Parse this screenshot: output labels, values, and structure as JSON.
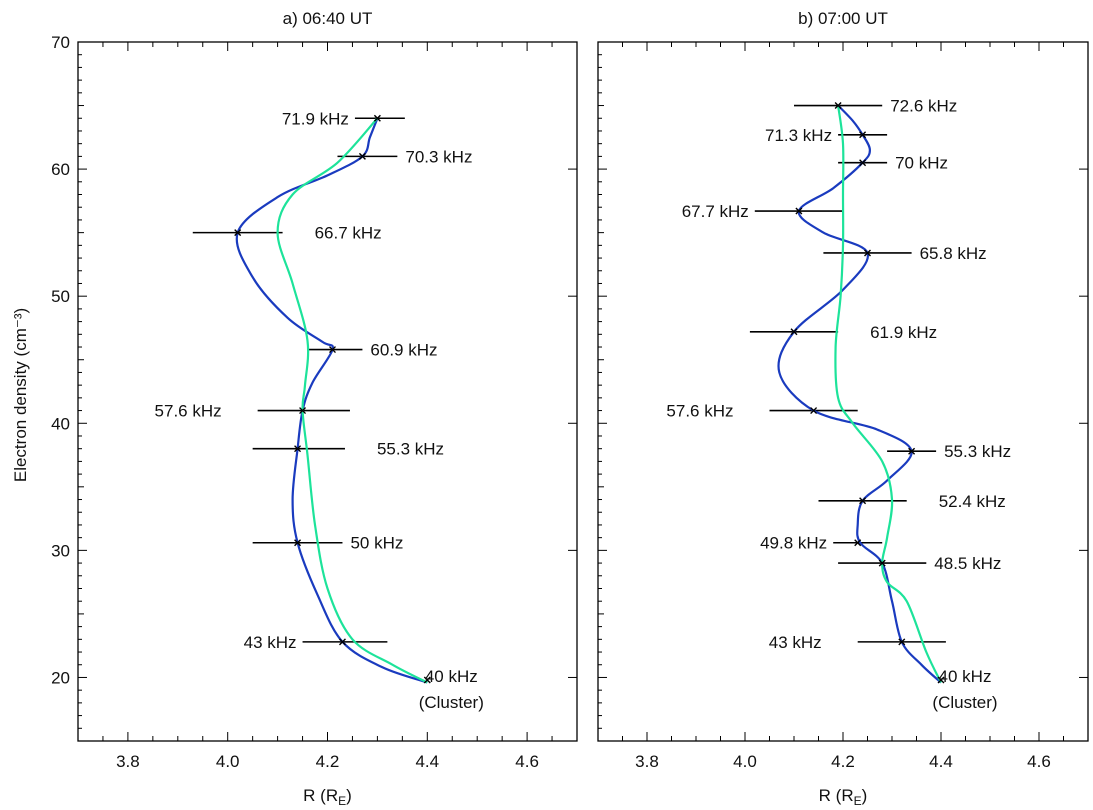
{
  "figure": {
    "ylabel": "Electron density (cm⁻³)",
    "xlabel": "R (R",
    "xlabel_sub": "E",
    "xlabel_close": ")"
  },
  "chart_data": [
    {
      "type": "line",
      "title": "a) 06:40 UT",
      "xlim": [
        3.7,
        4.7
      ],
      "ylim": [
        15,
        70
      ],
      "xticks": [
        "3.8",
        "4.0",
        "4.2",
        "4.4",
        "4.6"
      ],
      "yticks": [
        "20",
        "30",
        "40",
        "50",
        "60",
        "70"
      ],
      "grid": false,
      "measurements": [
        {
          "x": 4.3,
          "y": 64.0,
          "xerr": [
            4.255,
            4.355
          ],
          "label": "71.9 kHz",
          "label_side": "left"
        },
        {
          "x": 4.27,
          "y": 61.0,
          "xerr": [
            4.22,
            4.34
          ],
          "label": "70.3 kHz",
          "label_side": "right"
        },
        {
          "x": 4.02,
          "y": 55.0,
          "xerr": [
            3.93,
            4.11
          ],
          "label": "66.7 kHz",
          "label_side": "right_far"
        },
        {
          "x": 4.21,
          "y": 45.8,
          "xerr": [
            4.16,
            4.27
          ],
          "label": "60.9 kHz",
          "label_side": "right"
        },
        {
          "x": 4.15,
          "y": 41.0,
          "xerr": [
            4.06,
            4.245
          ],
          "label": "57.6 kHz",
          "label_side": "left_far"
        },
        {
          "x": 4.14,
          "y": 38.0,
          "xerr": [
            4.05,
            4.235
          ],
          "label": "55.3 kHz",
          "label_side": "right_far"
        },
        {
          "x": 4.14,
          "y": 30.6,
          "xerr": [
            4.05,
            4.23
          ],
          "label": "50 kHz",
          "label_side": "right"
        },
        {
          "x": 4.23,
          "y": 22.8,
          "xerr": [
            4.15,
            4.32
          ],
          "label": "43 kHz",
          "label_side": "left"
        },
        {
          "x": 4.4,
          "y": 19.8,
          "xerr": [
            4.4,
            4.4
          ],
          "label": "40 kHz",
          "label2": "(Cluster)",
          "label_side": "cluster"
        }
      ],
      "series": [
        {
          "color": "#1a3bbf",
          "x": [
            4.3,
            4.285,
            4.27,
            4.2,
            4.1,
            4.02,
            4.05,
            4.12,
            4.19,
            4.21,
            4.17,
            4.15,
            4.14,
            4.13,
            4.14,
            4.18,
            4.23,
            4.31,
            4.4
          ],
          "y": [
            64.0,
            62.5,
            61.0,
            59.5,
            57.8,
            55.0,
            51.5,
            48.3,
            46.4,
            45.8,
            43.2,
            41.0,
            38.0,
            34.0,
            30.6,
            26.5,
            22.8,
            20.8,
            19.6
          ]
        },
        {
          "color": "#1de39a",
          "x": [
            4.3,
            4.22,
            4.13,
            4.1,
            4.13,
            4.16,
            4.155,
            4.15,
            4.16,
            4.175,
            4.2,
            4.25,
            4.33,
            4.4
          ],
          "y": [
            64.0,
            60.5,
            58.0,
            55.0,
            51.0,
            46.5,
            43.0,
            41.0,
            37.5,
            32.0,
            27.0,
            23.0,
            21.0,
            19.6
          ]
        }
      ]
    },
    {
      "type": "line",
      "title": "b) 07:00 UT",
      "xlim": [
        3.7,
        4.7
      ],
      "ylim": [
        15,
        70
      ],
      "xticks": [
        "3.8",
        "4.0",
        "4.2",
        "4.4",
        "4.6"
      ],
      "yticks": [
        "20",
        "30",
        "40",
        "50",
        "60",
        "70"
      ],
      "grid": false,
      "measurements": [
        {
          "x": 4.19,
          "y": 65.0,
          "xerr": [
            4.1,
            4.28
          ],
          "label": "72.6 kHz",
          "label_side": "right"
        },
        {
          "x": 4.24,
          "y": 62.7,
          "xerr": [
            4.19,
            4.29
          ],
          "label": "71.3 kHz",
          "label_side": "left"
        },
        {
          "x": 4.24,
          "y": 60.5,
          "xerr": [
            4.19,
            4.29
          ],
          "label": "70 kHz",
          "label_side": "right"
        },
        {
          "x": 4.11,
          "y": 56.7,
          "xerr": [
            4.02,
            4.2
          ],
          "label": "67.7 kHz",
          "label_side": "left"
        },
        {
          "x": 4.25,
          "y": 53.4,
          "xerr": [
            4.16,
            4.34
          ],
          "label": "65.8 kHz",
          "label_side": "right"
        },
        {
          "x": 4.1,
          "y": 47.2,
          "xerr": [
            4.01,
            4.19
          ],
          "label": "61.9 kHz",
          "label_side": "right_far"
        },
        {
          "x": 4.14,
          "y": 41.0,
          "xerr": [
            4.05,
            4.23
          ],
          "label": "57.6 kHz",
          "label_side": "left_far"
        },
        {
          "x": 4.34,
          "y": 37.8,
          "xerr": [
            4.29,
            4.39
          ],
          "label": "55.3 kHz",
          "label_side": "right"
        },
        {
          "x": 4.24,
          "y": 33.9,
          "xerr": [
            4.15,
            4.33
          ],
          "label": "52.4 kHz",
          "label_side": "right_far"
        },
        {
          "x": 4.23,
          "y": 30.6,
          "xerr": [
            4.18,
            4.28
          ],
          "label": "49.8 kHz",
          "label_side": "left"
        },
        {
          "x": 4.28,
          "y": 29.0,
          "xerr": [
            4.19,
            4.37
          ],
          "label": "48.5 kHz",
          "label_side": "right"
        },
        {
          "x": 4.32,
          "y": 22.8,
          "xerr": [
            4.23,
            4.41
          ],
          "label": "43 kHz",
          "label_side": "left_far"
        },
        {
          "x": 4.4,
          "y": 19.8,
          "xerr": [
            4.4,
            4.4
          ],
          "label": "40 kHz",
          "label2": "(Cluster)",
          "label_side": "cluster"
        }
      ],
      "series": [
        {
          "color": "#1a3bbf",
          "x": [
            4.19,
            4.22,
            4.24,
            4.255,
            4.24,
            4.18,
            4.11,
            4.16,
            4.25,
            4.2,
            4.1,
            4.07,
            4.14,
            4.27,
            4.34,
            4.29,
            4.24,
            4.23,
            4.235,
            4.28,
            4.3,
            4.32,
            4.36,
            4.4
          ],
          "y": [
            65.0,
            63.8,
            62.7,
            61.5,
            60.5,
            58.5,
            56.7,
            55.0,
            53.4,
            50.5,
            47.2,
            44.0,
            41.0,
            39.5,
            37.8,
            35.5,
            33.9,
            32.0,
            30.6,
            29.0,
            26.0,
            22.8,
            21.0,
            19.6
          ]
        },
        {
          "color": "#1de39a",
          "x": [
            4.19,
            4.2,
            4.2,
            4.2,
            4.195,
            4.185,
            4.19,
            4.22,
            4.28,
            4.3,
            4.29,
            4.28,
            4.29,
            4.33,
            4.37,
            4.4
          ],
          "y": [
            65.0,
            62.0,
            58.0,
            54.0,
            50.0,
            46.0,
            42.0,
            40.0,
            37.0,
            34.0,
            31.0,
            29.0,
            27.5,
            26.0,
            22.0,
            19.6
          ]
        }
      ]
    }
  ]
}
